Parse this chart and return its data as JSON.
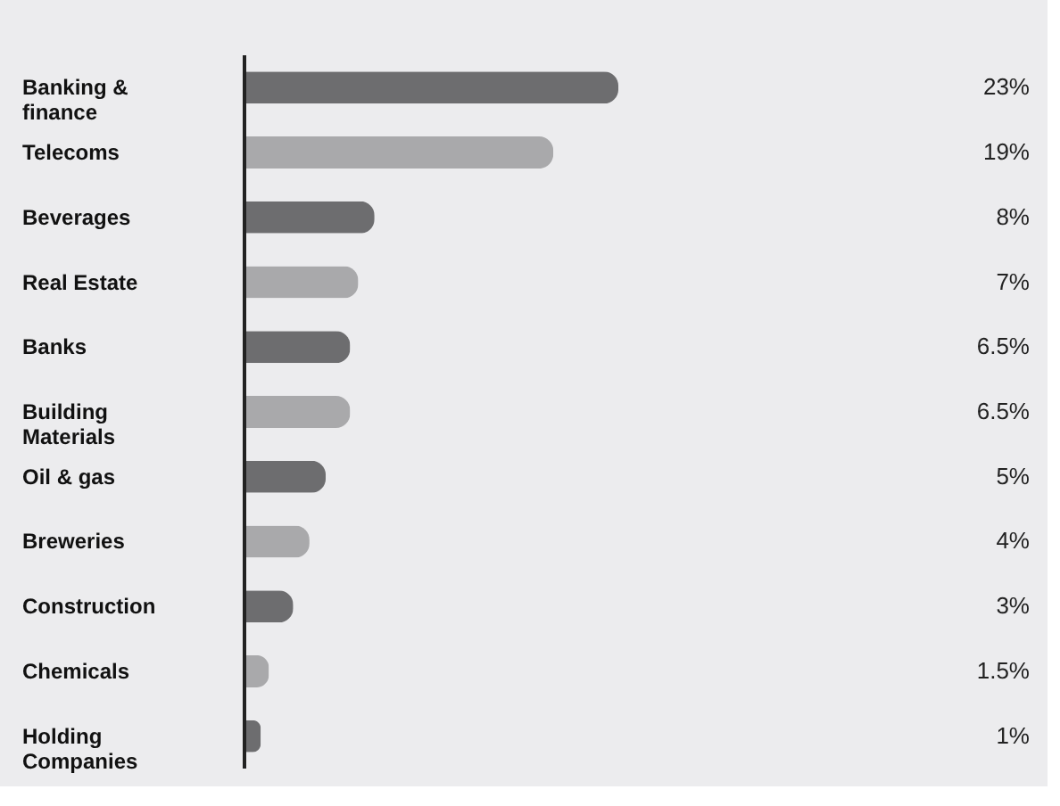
{
  "chart_data": {
    "type": "bar",
    "orientation": "horizontal",
    "data_labels": true,
    "categories": [
      "Banking & finance",
      "Telecoms",
      "Beverages",
      "Real Estate",
      "Banks",
      "Building Materials",
      "Oil & gas",
      "Breweries",
      "Construction",
      "Chemicals",
      "Holding Companies"
    ],
    "values": [
      23,
      19,
      8,
      7,
      6.5,
      6.5,
      5,
      4,
      3,
      1.5,
      1
    ],
    "colors": [
      "#6d6d6f",
      "#a9a9ab",
      "#6d6d6f",
      "#a9a9ab",
      "#6d6d6f",
      "#a9a9ab",
      "#6d6d6f",
      "#a9a9ab",
      "#6d6d6f",
      "#a9a9ab",
      "#6d6d6f"
    ],
    "value_labels": [
      "23%",
      "19%",
      "8%",
      "7%",
      "6.5%",
      "6.5%",
      "5%",
      "4%",
      "3%",
      "1.5%",
      "1%"
    ]
  }
}
